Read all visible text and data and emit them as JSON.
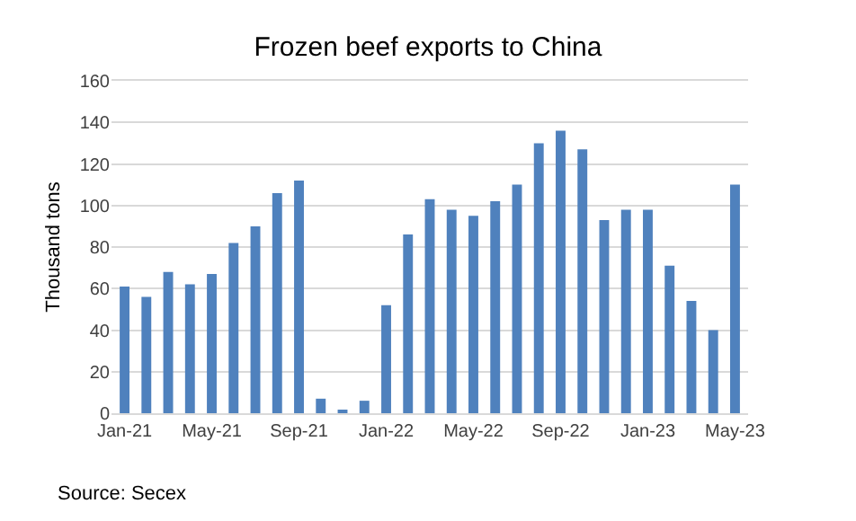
{
  "chart_data": {
    "type": "bar",
    "title": "Frozen beef exports to China",
    "ylabel": "Thousand tons",
    "categories": [
      "Jan-21",
      null,
      null,
      null,
      "May-21",
      null,
      null,
      null,
      "Sep-21",
      null,
      null,
      null,
      "Jan-22",
      null,
      null,
      null,
      "May-22",
      null,
      null,
      null,
      "Sep-22",
      null,
      null,
      null,
      "Jan-23",
      null,
      null,
      null,
      "May-23"
    ],
    "values": [
      61,
      56,
      68,
      62,
      67,
      82,
      90,
      106,
      112,
      7,
      1,
      6,
      52,
      86,
      103,
      98,
      95,
      102,
      110,
      130,
      136,
      127,
      93,
      98,
      98,
      71,
      54,
      40,
      110
    ],
    "color": "#4f81bd",
    "ylim": [
      0,
      160
    ],
    "yticks": [
      0,
      20,
      40,
      60,
      80,
      100,
      120,
      140,
      160
    ],
    "grid": "y",
    "annotations": [
      "Source: Secex"
    ]
  }
}
